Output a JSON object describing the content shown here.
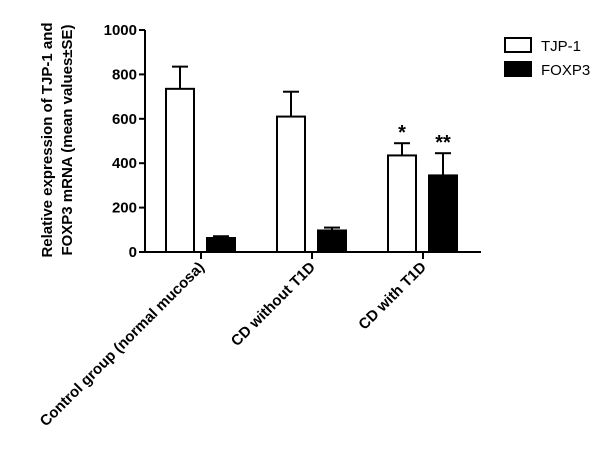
{
  "chart_data": {
    "type": "bar",
    "title": "",
    "xlabel": "",
    "ylabel": "Relative expression of TJP-1 and FOXP3 mRNA (mean values±SE)",
    "ylabel_lines": [
      "Relative expression of TJP-1 and",
      "FOXP3 mRNA (mean values±SE)"
    ],
    "ylim": [
      0,
      1000
    ],
    "yticks": [
      0,
      200,
      400,
      600,
      800,
      1000
    ],
    "grid": false,
    "legend_position": "top-right",
    "categories": [
      "Control group  (normal mucosa)",
      "CD without T1D",
      "CD with T1D"
    ],
    "series": [
      {
        "name": "TJP-1",
        "fill": "#ffffff",
        "stroke": "#000000",
        "values": [
          735,
          610,
          435
        ],
        "errors": [
          100,
          112,
          55
        ],
        "annotations": [
          "",
          "",
          "*"
        ]
      },
      {
        "name": "FOXP3",
        "fill": "#000000",
        "stroke": "#000000",
        "values": [
          63,
          97,
          345
        ],
        "errors": [
          8,
          13,
          100
        ],
        "annotations": [
          "",
          "",
          "**"
        ]
      }
    ]
  }
}
